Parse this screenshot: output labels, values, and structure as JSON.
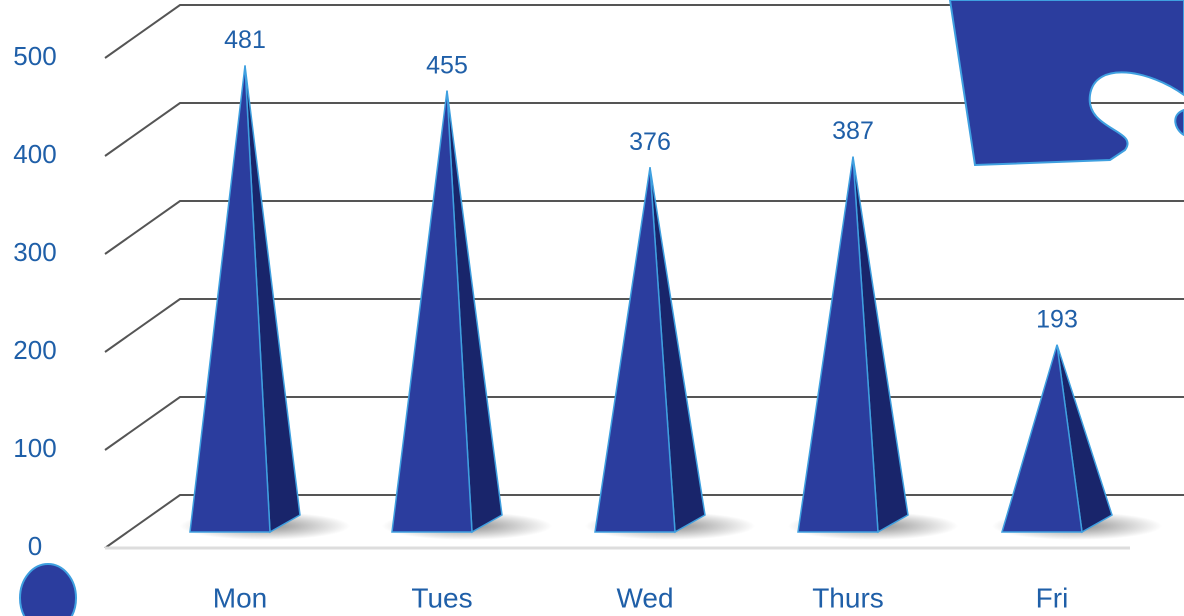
{
  "chart_data": {
    "type": "pyramid",
    "categories": [
      "Mon",
      "Tues",
      "Wed",
      "Thurs",
      "Fri"
    ],
    "values": [
      481,
      455,
      376,
      387,
      193
    ],
    "color": "#2b3d9e",
    "ylim": [
      0,
      500
    ],
    "yticks": [
      0,
      100,
      200,
      300,
      400,
      500
    ],
    "grid": true
  }
}
